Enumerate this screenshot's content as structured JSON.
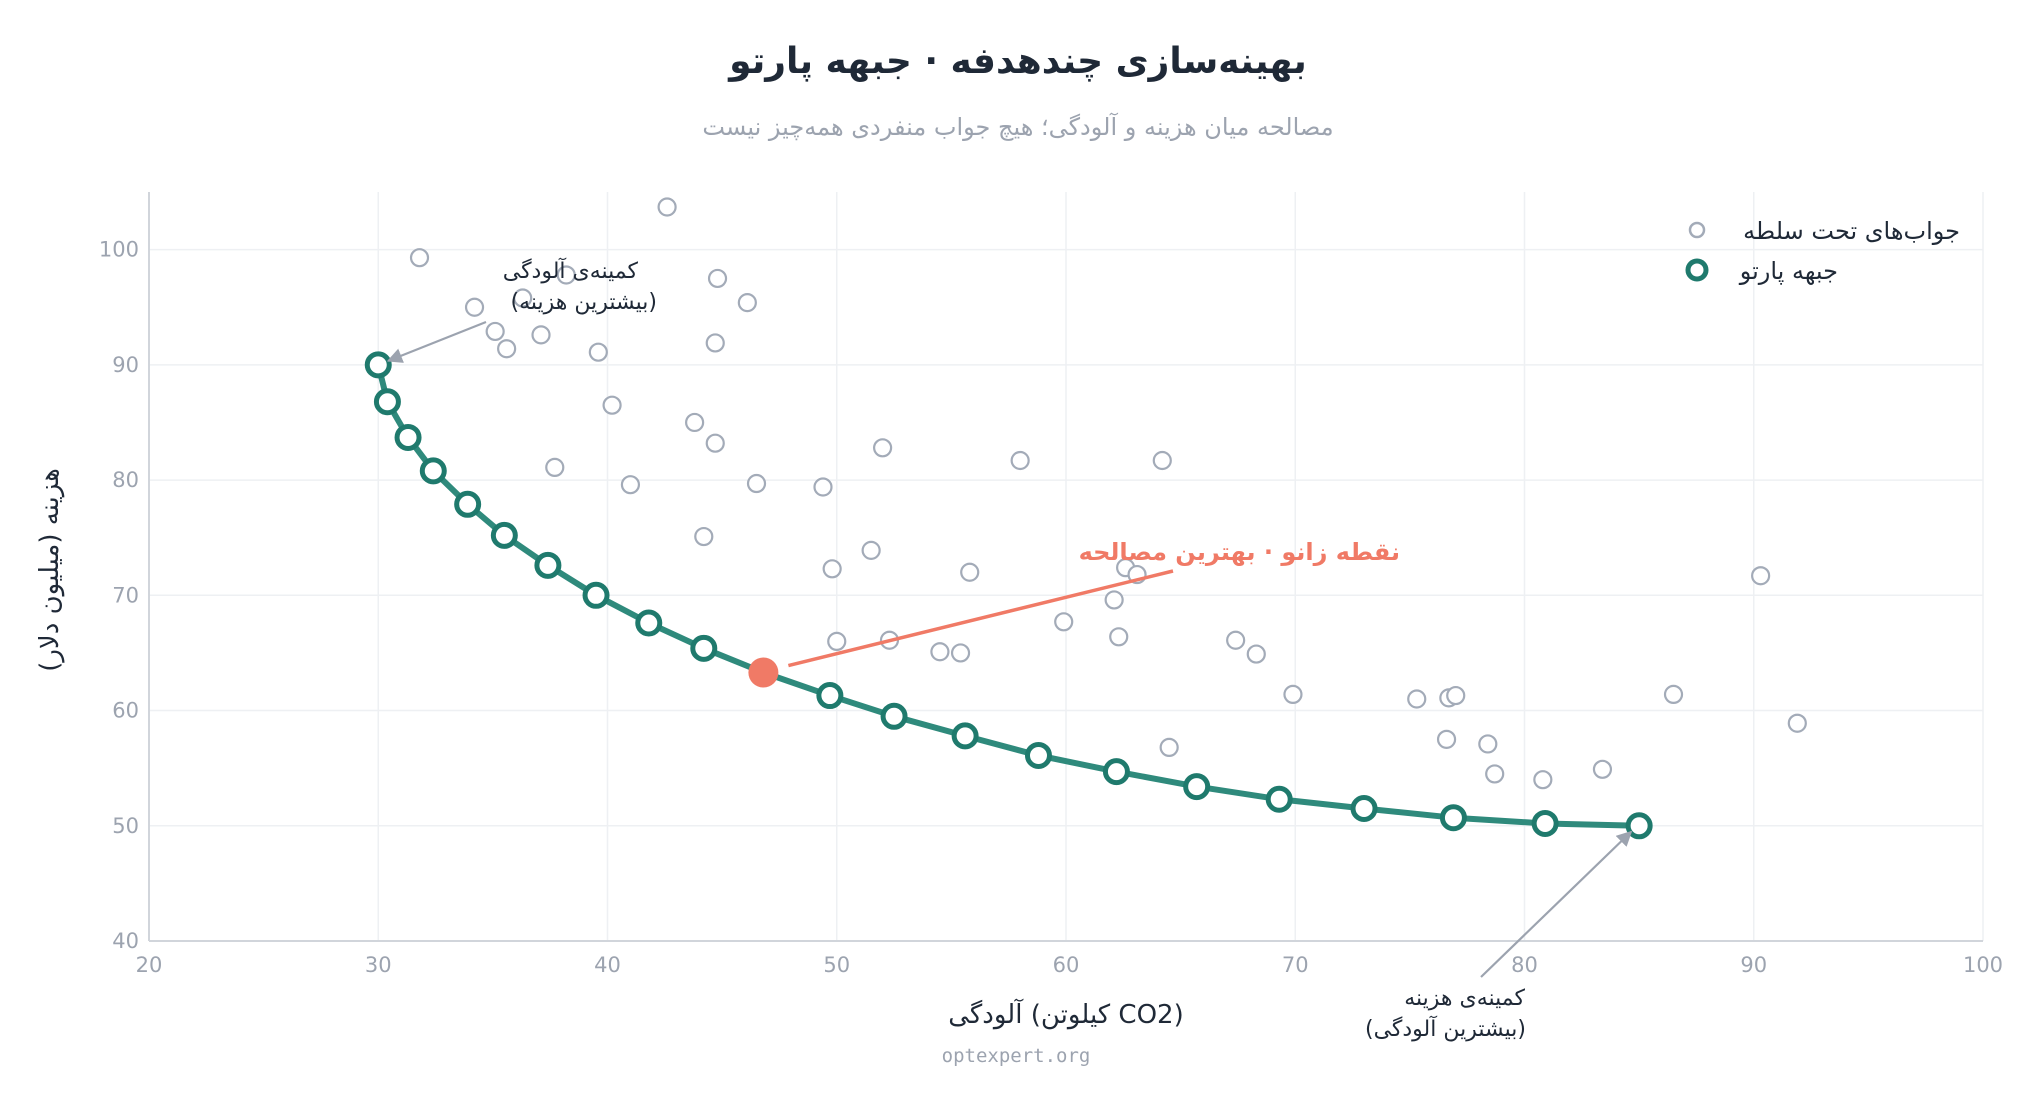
{
  "colors": {
    "front": "#1f7a6d",
    "front_line": "#2f8a7c",
    "dominated": "#a3abb8",
    "knee": "#f07a66",
    "grid": "#eef0f3",
    "axis": "#d1d5db",
    "arrow": "#9ca3af"
  },
  "chart_data": {
    "type": "scatter",
    "title": "بهینه‌سازی چندهدفه · جبهه پارتو",
    "subtitle": "مصالحه میان هزینه و آلودگی؛ هیچ جواب منفردی همه‌چیز نیست",
    "xlabel": "آلودگی (کیلوتن CO2)",
    "ylabel": "هزینه (میلیون دلار)",
    "xlim": [
      20,
      100
    ],
    "ylim": [
      40,
      105
    ],
    "xticks": [
      20,
      30,
      40,
      50,
      60,
      70,
      80,
      90,
      100
    ],
    "yticks": [
      40,
      50,
      60,
      70,
      80,
      90,
      100
    ],
    "grid": true,
    "legend_position": "top-right",
    "legend": {
      "dominated": "جواب‌های تحت سلطه",
      "front": "جبهه پارتو"
    },
    "series": [
      {
        "name": "جواب‌های تحت سلطه",
        "style": "hollow-small",
        "points": [
          [
            31.8,
            99.3
          ],
          [
            34.2,
            95.0
          ],
          [
            35.1,
            92.9
          ],
          [
            35.6,
            91.4
          ],
          [
            37.1,
            92.6
          ],
          [
            38.2,
            97.8
          ],
          [
            36.3,
            95.8
          ],
          [
            39.6,
            91.1
          ],
          [
            42.6,
            103.7
          ],
          [
            44.8,
            97.5
          ],
          [
            46.1,
            95.4
          ],
          [
            44.7,
            91.9
          ],
          [
            40.2,
            86.5
          ],
          [
            43.8,
            85.0
          ],
          [
            44.7,
            83.2
          ],
          [
            37.7,
            81.1
          ],
          [
            41.0,
            79.6
          ],
          [
            46.5,
            79.7
          ],
          [
            49.4,
            79.4
          ],
          [
            52.0,
            82.8
          ],
          [
            58.0,
            81.7
          ],
          [
            64.2,
            81.7
          ],
          [
            44.2,
            75.1
          ],
          [
            51.5,
            73.9
          ],
          [
            49.8,
            72.3
          ],
          [
            55.8,
            72.0
          ],
          [
            62.6,
            72.4
          ],
          [
            63.1,
            71.8
          ],
          [
            62.1,
            69.6
          ],
          [
            59.9,
            67.7
          ],
          [
            62.3,
            66.4
          ],
          [
            67.4,
            66.1
          ],
          [
            50.0,
            66.0
          ],
          [
            52.3,
            66.1
          ],
          [
            54.5,
            65.1
          ],
          [
            55.4,
            65.0
          ],
          [
            68.3,
            64.9
          ],
          [
            69.9,
            61.4
          ],
          [
            75.3,
            61.0
          ],
          [
            76.7,
            61.1
          ],
          [
            77.0,
            61.3
          ],
          [
            86.5,
            61.4
          ],
          [
            90.3,
            71.7
          ],
          [
            91.9,
            58.9
          ],
          [
            64.5,
            56.8
          ],
          [
            76.6,
            57.5
          ],
          [
            78.4,
            57.1
          ],
          [
            78.7,
            54.5
          ],
          [
            80.8,
            54.0
          ],
          [
            83.4,
            54.9
          ]
        ]
      },
      {
        "name": "جبهه پارتو",
        "style": "hollow-large-line",
        "points": [
          [
            30.0,
            90.0
          ],
          [
            30.4,
            86.8
          ],
          [
            31.3,
            83.7
          ],
          [
            32.4,
            80.8
          ],
          [
            33.9,
            77.9
          ],
          [
            35.5,
            75.2
          ],
          [
            37.4,
            72.6
          ],
          [
            39.5,
            70.0
          ],
          [
            41.8,
            67.6
          ],
          [
            44.2,
            65.4
          ],
          [
            49.7,
            61.3
          ],
          [
            52.5,
            59.5
          ],
          [
            55.6,
            57.8
          ],
          [
            58.8,
            56.1
          ],
          [
            62.2,
            54.7
          ],
          [
            65.7,
            53.4
          ],
          [
            69.3,
            52.3
          ],
          [
            73.0,
            51.5
          ],
          [
            76.9,
            50.7
          ],
          [
            80.9,
            50.2
          ],
          [
            85.0,
            50.0
          ]
        ]
      }
    ],
    "knee_point": {
      "x": 46.8,
      "y": 63.3,
      "label": "نقطه زانو · بهترین مصالحه"
    },
    "annotations": [
      {
        "line1": "کمینه‌ی آلودگی",
        "line2": "(بیشترین هزینه)",
        "target": [
          30.0,
          90.0
        ]
      },
      {
        "line1": "کمینه‌ی هزینه",
        "line2": "(بیشترین آلودگی)",
        "target": [
          85.0,
          50.0
        ]
      }
    ]
  },
  "footer": {
    "watermark": "optexpert.org"
  }
}
